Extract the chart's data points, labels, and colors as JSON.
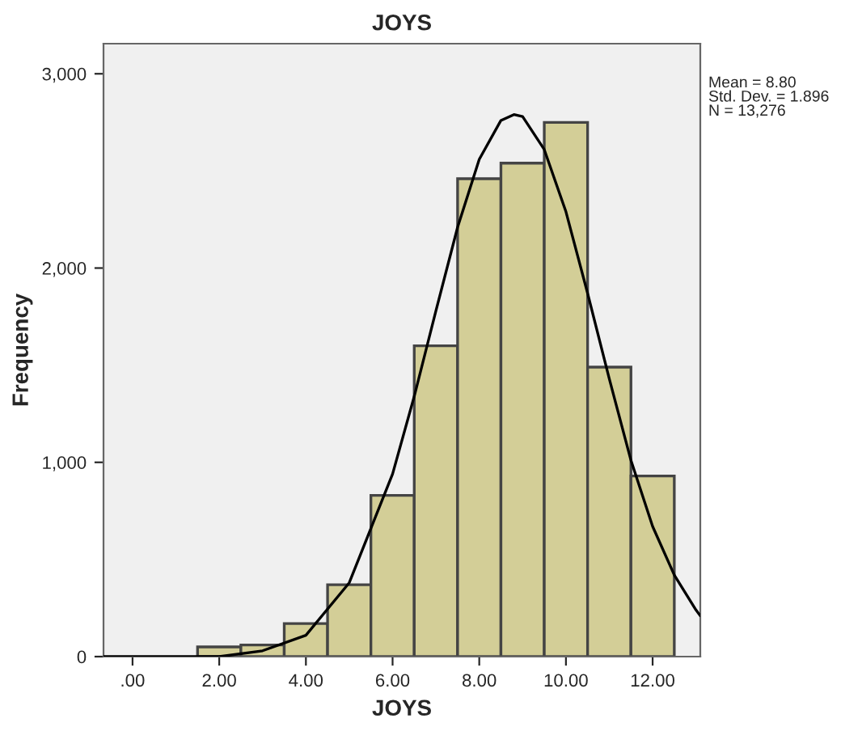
{
  "chart_data": {
    "type": "histogram",
    "title": "JOYS",
    "xlabel": "JOYS",
    "ylabel": "Frequency",
    "bins": [
      1.5,
      2.5,
      3.5,
      4.5,
      5.5,
      6.5,
      7.5,
      8.5,
      9.5,
      10.5,
      11.5,
      12.5
    ],
    "values": [
      50,
      60,
      170,
      370,
      830,
      1600,
      2460,
      2540,
      2750,
      1490,
      930
    ],
    "color": "#d3ce97",
    "series": [
      {
        "type": "line",
        "color": "#000000",
        "x": [
          -0.67,
          1,
          2,
          3,
          4,
          5,
          6,
          6.5,
          7,
          7.5,
          8,
          8.5,
          8.8,
          9,
          9.5,
          10,
          10.5,
          11,
          11.5,
          12,
          12.5,
          13,
          13.1
        ],
        "values": [
          0,
          0,
          0,
          30,
          110,
          380,
          940,
          1340,
          1780,
          2210,
          2560,
          2760,
          2790,
          2780,
          2610,
          2290,
          1870,
          1430,
          1010,
          670,
          420,
          240,
          210
        ]
      }
    ],
    "xlim": [
      -0.67,
      13.1
    ],
    "ylim": [
      0,
      3155
    ],
    "xticks": [
      {
        "value": 0,
        "label": ".00"
      },
      {
        "value": 2,
        "label": "2.00"
      },
      {
        "value": 4,
        "label": "4.00"
      },
      {
        "value": 6,
        "label": "6.00"
      },
      {
        "value": 8,
        "label": "8.00"
      },
      {
        "value": 10,
        "label": "10.00"
      },
      {
        "value": 12,
        "label": "12.00"
      }
    ],
    "yticks": [
      0,
      {
        "value": 1000,
        "label": "1,000"
      },
      {
        "value": 2000,
        "label": "2,000"
      },
      {
        "value": 3000,
        "label": "3,000"
      }
    ],
    "annotations": [
      "Mean = 8.80\nStd. Dev. = 1.896\nN = 13,276"
    ],
    "grid": false
  }
}
